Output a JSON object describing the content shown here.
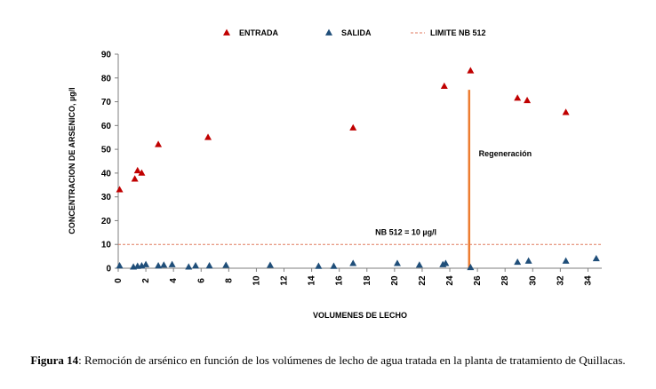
{
  "chart_data": {
    "type": "scatter",
    "xlabel": "VOLUMENES DE LECHO",
    "ylabel": "CONCENTRACION DE ARSENICO, µg/l",
    "xlim": [
      0,
      35
    ],
    "ylim": [
      0,
      90
    ],
    "x_ticks": [
      0,
      2,
      4,
      6,
      8,
      10,
      12,
      14,
      16,
      18,
      20,
      22,
      24,
      26,
      28,
      30,
      32,
      34
    ],
    "y_ticks": [
      0,
      10,
      20,
      30,
      40,
      50,
      60,
      70,
      80,
      90
    ],
    "grid": false,
    "legend_position": "top",
    "series": [
      {
        "name": "ENTRADA",
        "marker": "triangle",
        "color": "#c00000",
        "points": [
          [
            0.1,
            33
          ],
          [
            1.2,
            37.5
          ],
          [
            1.4,
            41
          ],
          [
            1.7,
            40
          ],
          [
            2.9,
            52
          ],
          [
            6.5,
            55
          ],
          [
            17,
            59
          ],
          [
            23.6,
            76.5
          ],
          [
            25.5,
            83
          ],
          [
            28.9,
            71.5
          ],
          [
            29.6,
            70.5
          ],
          [
            32.4,
            65.5
          ]
        ]
      },
      {
        "name": "SALIDA",
        "marker": "triangle",
        "color": "#1f4e79",
        "points": [
          [
            0.1,
            1
          ],
          [
            1.1,
            0.5
          ],
          [
            1.4,
            0.8
          ],
          [
            1.7,
            1
          ],
          [
            2,
            1.5
          ],
          [
            2.9,
            1
          ],
          [
            3.3,
            1.3
          ],
          [
            3.9,
            1.5
          ],
          [
            5.1,
            0.5
          ],
          [
            5.6,
            1
          ],
          [
            6.6,
            1
          ],
          [
            7.8,
            1.2
          ],
          [
            11,
            1.2
          ],
          [
            14.5,
            0.8
          ],
          [
            15.6,
            0.8
          ],
          [
            17,
            2
          ],
          [
            20.2,
            2
          ],
          [
            21.8,
            1.3
          ],
          [
            23.5,
            1.5
          ],
          [
            23.7,
            2
          ],
          [
            25.5,
            0.3
          ],
          [
            28.9,
            2.5
          ],
          [
            29.7,
            3
          ],
          [
            32.4,
            3
          ],
          [
            34.6,
            4
          ]
        ]
      },
      {
        "name": "LIMITE NB 512",
        "type": "line",
        "style": "dashed",
        "color": "#e07a5f",
        "x": [
          0,
          35
        ],
        "y": [
          10,
          10
        ]
      }
    ],
    "regeneration": {
      "x": 25.4,
      "y_top": 75,
      "y_bottom": 0,
      "color": "#ed7d31"
    },
    "annotations": [
      {
        "text": "Regeneración",
        "x": 26.1,
        "y": 47
      },
      {
        "text": "NB 512 = 10 µg/l",
        "x": 18.6,
        "y": 14
      }
    ]
  },
  "caption": {
    "label": "Figura 14",
    "text": ": Remoción de arsénico en función de los volúmenes de lecho de agua tratada en la planta de tratamiento de Quillacas."
  }
}
